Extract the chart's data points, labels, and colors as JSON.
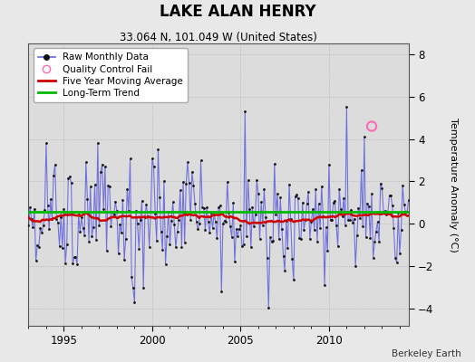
{
  "title": "LAKE ALAN HENRY",
  "subtitle": "33.064 N, 101.049 W (United States)",
  "ylabel": "Temperature Anomaly (°C)",
  "attribution": "Berkeley Earth",
  "xlim": [
    1993.0,
    2014.5
  ],
  "ylim": [
    -4.8,
    8.5
  ],
  "yticks": [
    -4,
    -2,
    0,
    2,
    4,
    6,
    8
  ],
  "xticks": [
    1995,
    2000,
    2005,
    2010
  ],
  "bg_color": "#e8e8e8",
  "plot_bg_color": "#dcdcdc",
  "raw_color": "#6666dd",
  "raw_dot_color": "#111111",
  "ma_color": "#cc0000",
  "trend_color": "#00bb00",
  "qc_color": "#ff69b4",
  "legend_labels": [
    "Raw Monthly Data",
    "Quality Control Fail",
    "Five Year Moving Average",
    "Long-Term Trend"
  ],
  "qc_fail_x": [
    2012.417
  ],
  "qc_fail_y": [
    4.6
  ],
  "trend_y": [
    0.55,
    0.55
  ]
}
